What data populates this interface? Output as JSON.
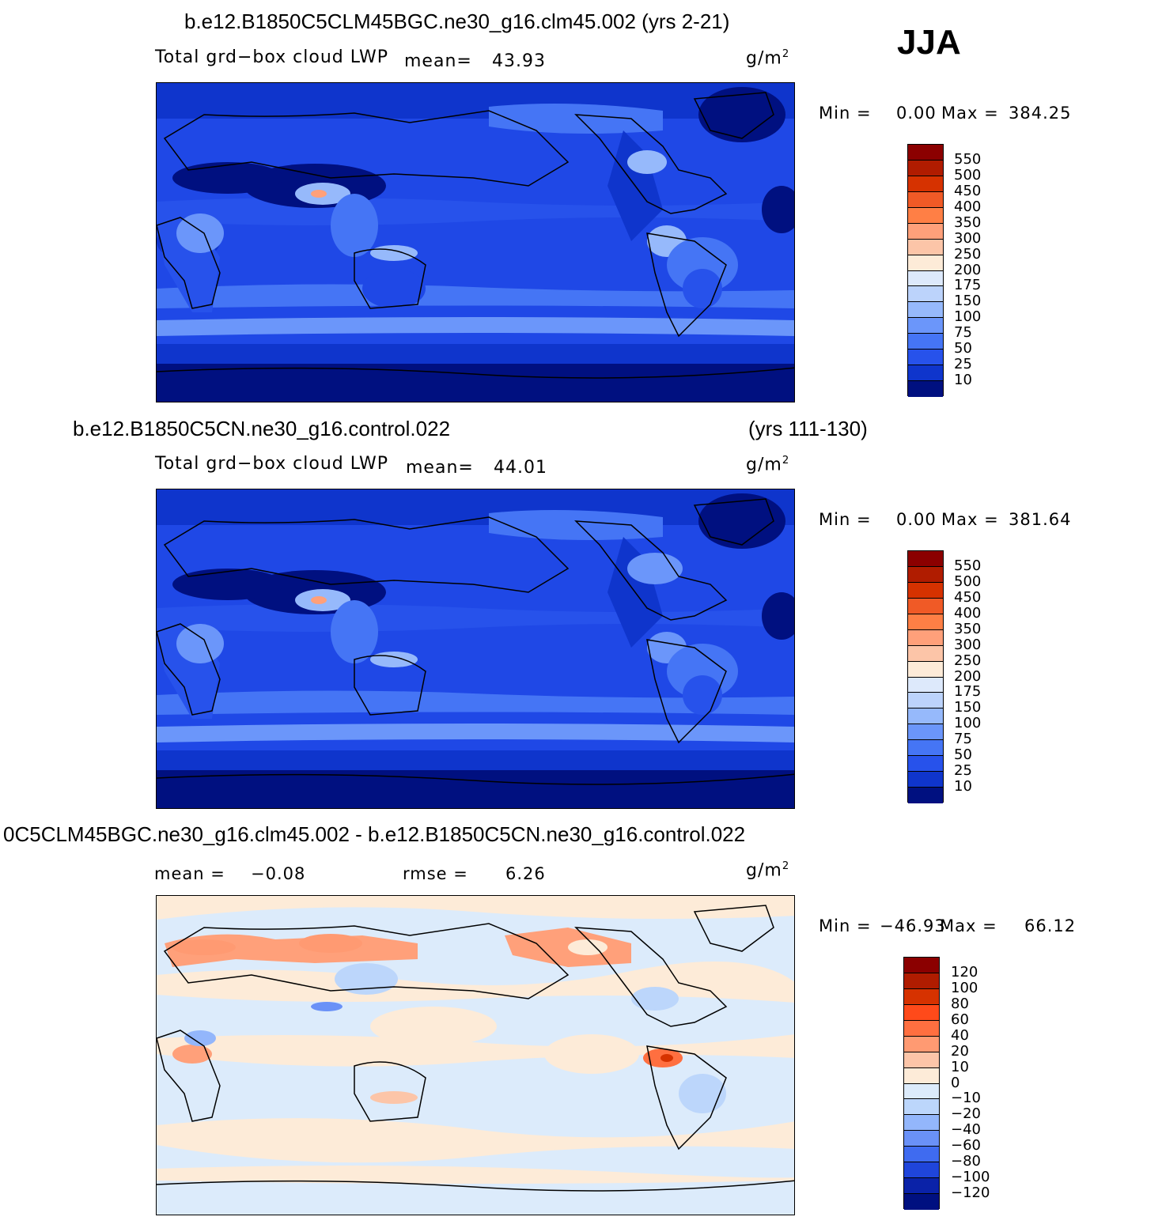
{
  "season": "JJA",
  "unit": "g/m",
  "unit_exp": "2",
  "panels": [
    {
      "title": "b.e12.B1850C5CLM45BGC.ne30_g16.clm45.002 (yrs 2-21)",
      "variable": "Total grd−box cloud LWP",
      "mean_label": "mean=",
      "mean_value": "43.93",
      "min_label": "Min  =",
      "min_value": "0.00",
      "max_label": "Max  =",
      "max_value": "384.25",
      "colorbar": {
        "levels": [
          "550",
          "500",
          "450",
          "400",
          "350",
          "300",
          "250",
          "200",
          "175",
          "150",
          "100",
          "75",
          "50",
          "25",
          "10"
        ],
        "colors": [
          "#8b0000",
          "#b01c00",
          "#d63200",
          "#f05a26",
          "#ff7f45",
          "#ffa07a",
          "#fcc5a8",
          "#fdebd8",
          "#dde9fb",
          "#bcd3fb",
          "#96b9fb",
          "#6b96fa",
          "#4575f5",
          "#2752eb",
          "#0f35cc",
          "#001080"
        ]
      }
    },
    {
      "title": "b.e12.B1850C5CN.ne30_g16.control.022",
      "years": "(yrs 111-130)",
      "variable": "Total grd−box cloud LWP",
      "mean_label": "mean=",
      "mean_value": "44.01",
      "min_label": "Min  =",
      "min_value": "0.00",
      "max_label": "Max  =",
      "max_value": "381.64",
      "colorbar": {
        "levels": [
          "550",
          "500",
          "450",
          "400",
          "350",
          "300",
          "250",
          "200",
          "175",
          "150",
          "100",
          "75",
          "50",
          "25",
          "10"
        ],
        "colors": [
          "#8b0000",
          "#b01c00",
          "#d63200",
          "#f05a26",
          "#ff7f45",
          "#ffa07a",
          "#fcc5a8",
          "#fdebd8",
          "#dde9fb",
          "#bcd3fb",
          "#96b9fb",
          "#6b96fa",
          "#4575f5",
          "#2752eb",
          "#0f35cc",
          "#001080"
        ]
      }
    },
    {
      "title": "0C5CLM45BGC.ne30_g16.clm45.002 - b.e12.B1850C5CN.ne30_g16.control.022",
      "mean_label": "mean  =",
      "mean_value": "−0.08",
      "rmse_label": "rmse  =",
      "rmse_value": "6.26",
      "min_label": "Min  =",
      "min_value": "−46.93",
      "max_label": "Max  =",
      "max_value": "66.12",
      "colorbar": {
        "levels": [
          "120",
          "100",
          "80",
          "60",
          "40",
          "20",
          "10",
          "0",
          "−10",
          "−20",
          "−40",
          "−60",
          "−80",
          "−100",
          "−120"
        ],
        "colors": [
          "#8b0000",
          "#b01c00",
          "#d63200",
          "#ff4a1a",
          "#ff6f40",
          "#ff9a72",
          "#fcc5a8",
          "#fdebd8",
          "#dcebfb",
          "#bcd6fb",
          "#93b6fb",
          "#6a91f7",
          "#3f6bf0",
          "#1f45db",
          "#0a22a8",
          "#001080"
        ]
      }
    }
  ]
}
